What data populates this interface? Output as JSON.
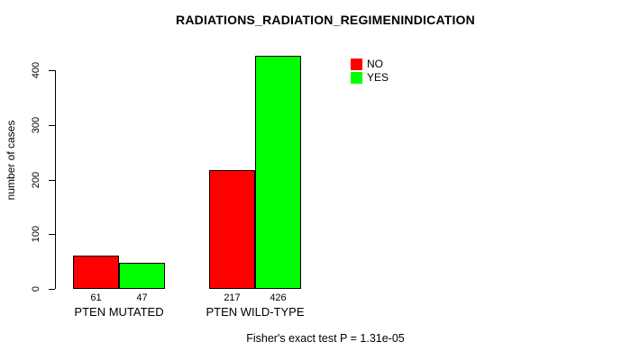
{
  "chart_data": {
    "type": "bar",
    "title": "RADIATIONS_RADIATION_REGIMENINDICATION",
    "categories": [
      "PTEN MUTATED",
      "PTEN WILD-TYPE"
    ],
    "series": [
      {
        "name": "NO",
        "color": "#FF0000",
        "values": [
          61,
          217
        ]
      },
      {
        "name": "YES",
        "color": "#00FF00",
        "values": [
          47,
          426
        ]
      }
    ],
    "ylabel": "number of cases",
    "xlabel": "",
    "yticks": [
      0,
      100,
      200,
      300,
      400
    ],
    "ylim": [
      0,
      430
    ],
    "grid": false,
    "legend_position": "top-right",
    "bar_value_labels": true,
    "annotation": "Fisher's exact test P = 1.31e-05"
  },
  "legend": [
    {
      "label": "NO",
      "color": "#FF0000"
    },
    {
      "label": "YES",
      "color": "#00FF00"
    }
  ],
  "colors": {
    "no": "#FF0000",
    "yes": "#00FF00",
    "axis": "#000000",
    "background": "#FFFFFF"
  }
}
